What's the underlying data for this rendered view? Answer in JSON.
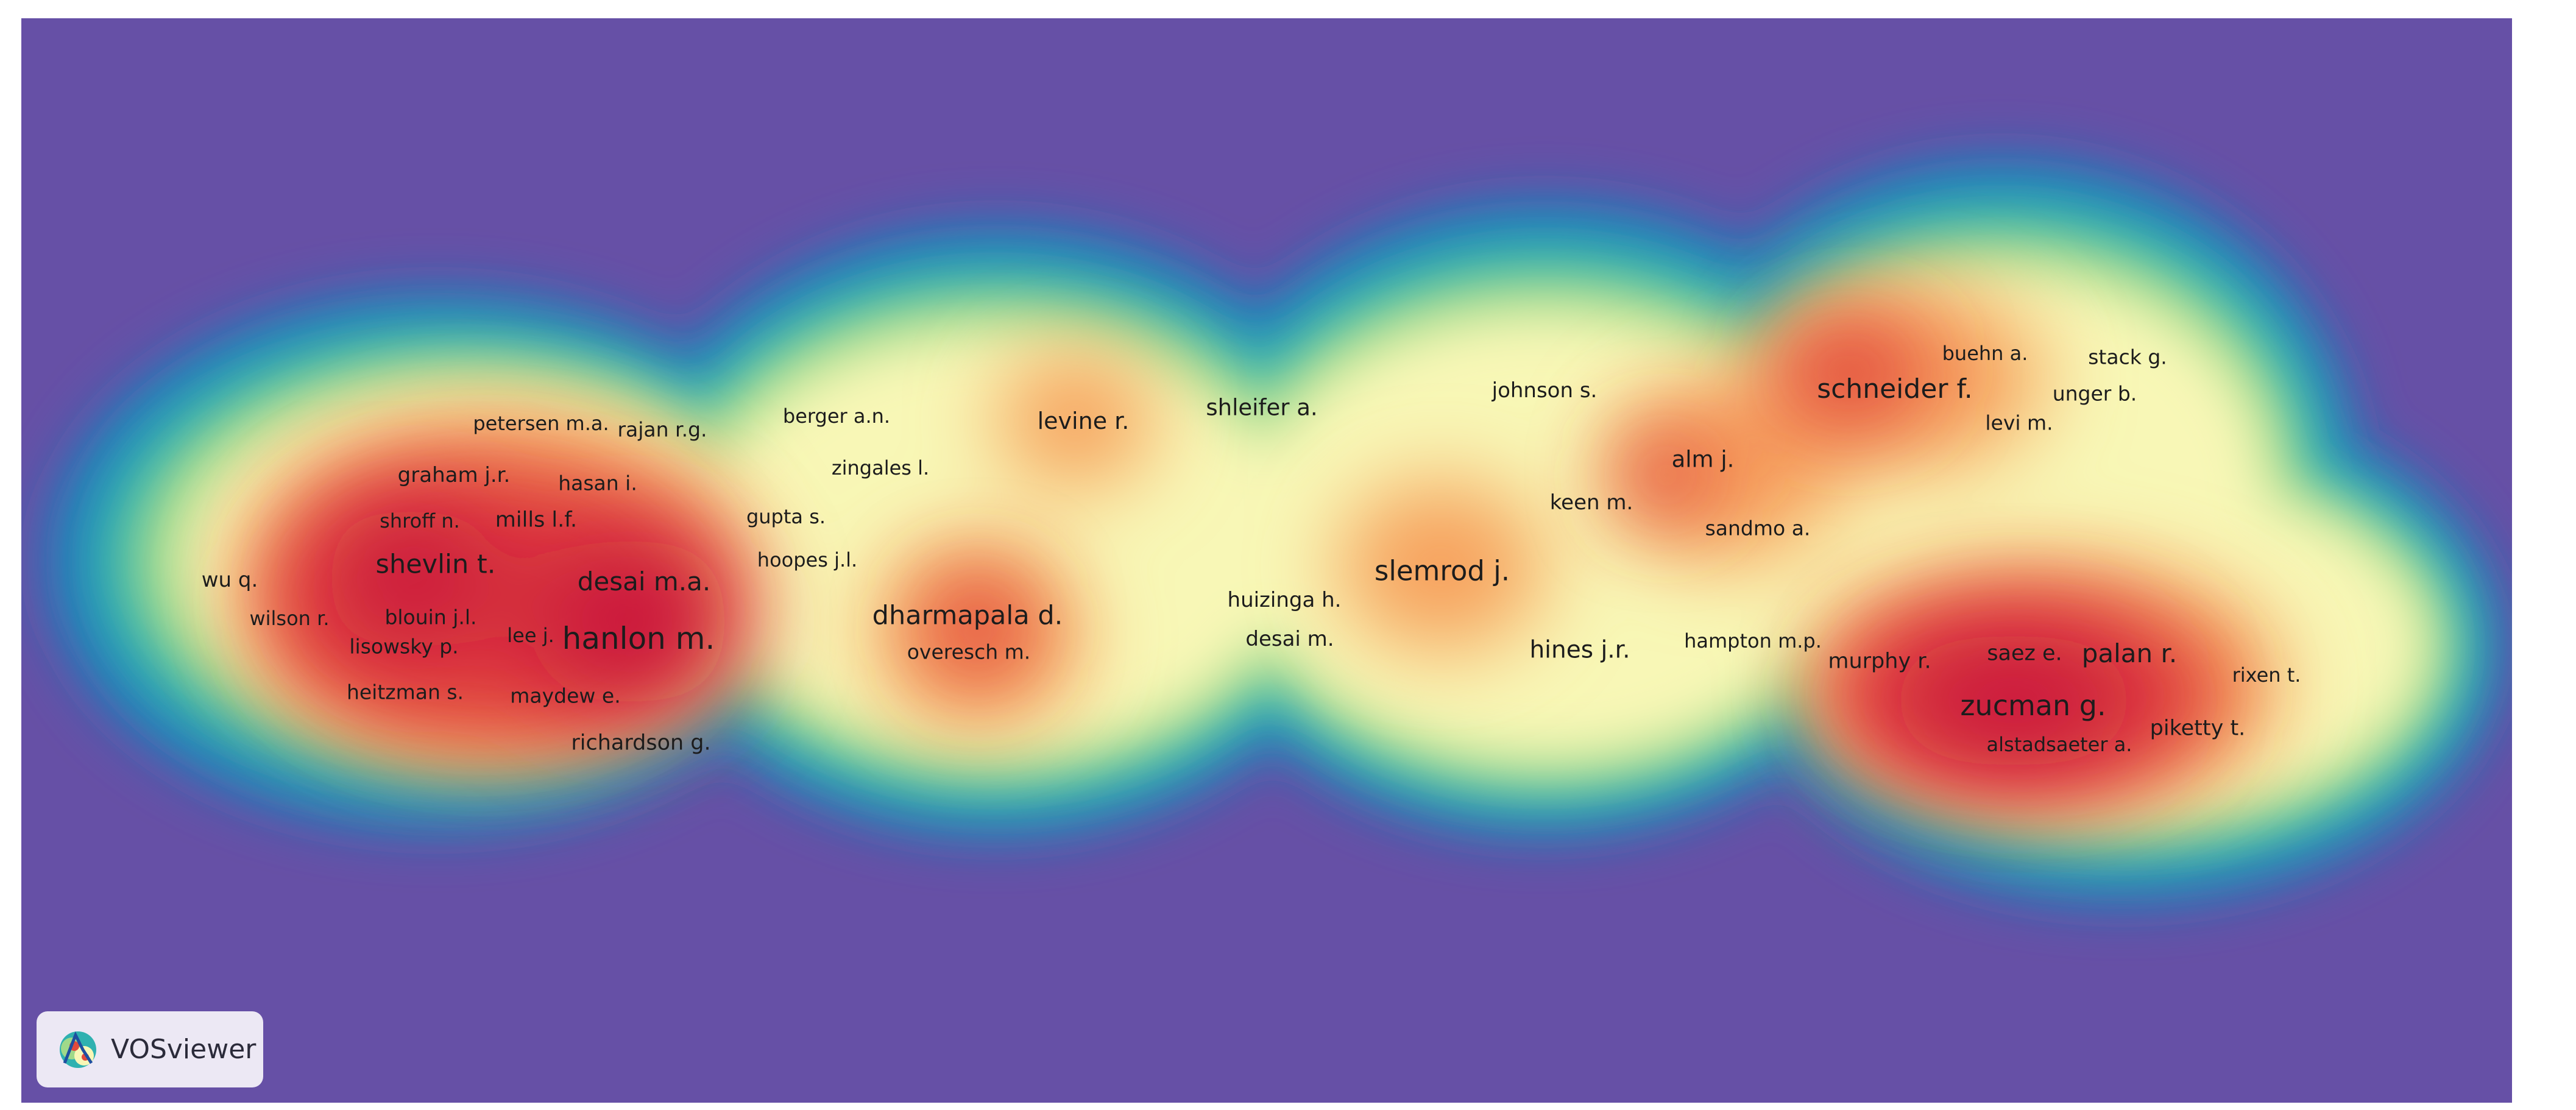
{
  "colors": {
    "background": "#6650a6",
    "ring_blue": "#1e7fbd",
    "ring_teal": "#2fb1b0",
    "ring_green": "#9fd98a",
    "ring_yellow": "#f8f7b6",
    "ring_orange": "#f7a15d",
    "ring_red": "#e24a3c",
    "core_crimson": "#c70f3e"
  },
  "badge": {
    "text": "VOSviewer",
    "icon": "vosviewer-logo-icon"
  },
  "labels": {
    "petersen": "petersen m.a.",
    "rajan": "rajan r.g.",
    "berger": "berger a.n.",
    "levine": "levine r.",
    "shleifer": "shleifer a.",
    "johnson": "johnson s.",
    "schneider": "schneider f.",
    "buehn": "buehn a.",
    "stack": "stack g.",
    "unger": "unger b.",
    "levi": "levi m.",
    "graham": "graham j.r.",
    "hasan": "hasan i.",
    "zingales": "zingales l.",
    "alm": "alm j.",
    "shroff": "shroff n.",
    "mills": "mills l.f.",
    "gupta": "gupta s.",
    "keen": "keen m.",
    "sandmo": "sandmo a.",
    "hoopes": "hoopes j.l.",
    "wuq": "wu q.",
    "shevlin": "shevlin t.",
    "desaima": "desai m.a.",
    "slemrod": "slemrod j.",
    "huizinga": "huizinga h.",
    "wilson": "wilson r.",
    "blouin": "blouin j.l.",
    "dharmapala": "dharmapala d.",
    "lisowsky": "lisowsky p.",
    "lee": "lee j.",
    "hanlon": "hanlon m.",
    "desaim": "desai m.",
    "hampton": "hampton m.p.",
    "hines": "hines j.r.",
    "overesch": "overesch m.",
    "murphy": "murphy r.",
    "saez": "saez e.",
    "palan": "palan r.",
    "rixen": "rixen t.",
    "heitzman": "heitzman s.",
    "maydew": "maydew e.",
    "zucman": "zucman g.",
    "piketty": "piketty t.",
    "richardson": "richardson g.",
    "alstadsaeter": "alstadsaeter a."
  }
}
